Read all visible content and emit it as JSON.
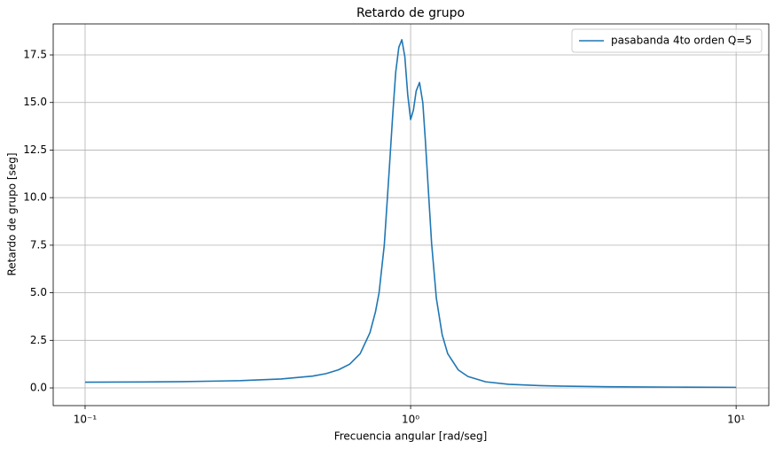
{
  "chart_data": {
    "type": "line",
    "title": "Retardo de grupo",
    "x_label": "Frecuencia angular [rad/seg]",
    "y_label": "Retardo de grupo [seg]",
    "x_scale": "log",
    "grid": true,
    "legend_position": "upper right",
    "xlim": [
      0.0798,
      12.6
    ],
    "ylim": [
      -0.93,
      19.13
    ],
    "xticks": [
      {
        "value": 0.1,
        "label": "10⁻¹"
      },
      {
        "value": 1,
        "label": "10⁰"
      },
      {
        "value": 10,
        "label": "10¹"
      }
    ],
    "yticks": [
      {
        "value": 0,
        "label": "0.0"
      },
      2.5,
      {
        "value": 5,
        "label": "5.0"
      },
      7.5,
      {
        "value": 10,
        "label": "10.0"
      },
      12.5,
      {
        "value": 15,
        "label": "15.0"
      },
      17.5
    ],
    "x": [
      0.1,
      0.15,
      0.2,
      0.3,
      0.4,
      0.5,
      0.55,
      0.6,
      0.65,
      0.7,
      0.75,
      0.78,
      0.8,
      0.83,
      0.86,
      0.88,
      0.9,
      0.92,
      0.94,
      0.96,
      0.98,
      1.0,
      1.02,
      1.04,
      1.065,
      1.09,
      1.11,
      1.13,
      1.16,
      1.2,
      1.25,
      1.3,
      1.4,
      1.5,
      1.7,
      2.0,
      2.5,
      3.0,
      4.0,
      5.0,
      7.0,
      10.0
    ],
    "series": [
      {
        "name": "pasabanda 4to orden Q=5",
        "color": "#1f77b4",
        "values": [
          0.3,
          0.31,
          0.33,
          0.38,
          0.47,
          0.62,
          0.75,
          0.95,
          1.25,
          1.8,
          2.9,
          4.0,
          5.0,
          7.5,
          11.5,
          14.2,
          16.6,
          17.9,
          18.3,
          17.4,
          15.4,
          14.1,
          14.6,
          15.6,
          16.05,
          15.0,
          13.0,
          10.8,
          7.6,
          4.7,
          2.8,
          1.8,
          0.95,
          0.6,
          0.32,
          0.19,
          0.12,
          0.09,
          0.06,
          0.05,
          0.04,
          0.03
        ]
      }
    ]
  }
}
